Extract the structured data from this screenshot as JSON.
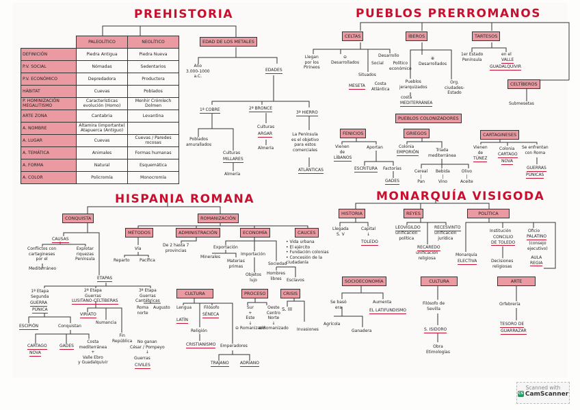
{
  "prehistoria": {
    "title": "PREHISTORIA",
    "table": {
      "headers": [
        "Paleolítico",
        "Neolítico"
      ],
      "rows": [
        {
          "label": "Definición",
          "paleo": "Piedra Antigua",
          "neo": "Piedra Nueva"
        },
        {
          "label": "P.V. Social",
          "paleo": "Nómadas",
          "neo": "Sedentarios"
        },
        {
          "label": "P.V. Económico",
          "paleo": "Depredadora",
          "neo": "Productora"
        },
        {
          "label": "Hábitat",
          "paleo": "Cuevas",
          "neo": "Poblados"
        },
        {
          "label": "P. Hominización Megalitismo",
          "paleo": "Características evolución (Homo)",
          "neo": "Menhir Crómlech Dolmen"
        },
        {
          "label": "Arte Zona",
          "paleo": "Cantabria",
          "neo": "Levantina"
        },
        {
          "label": "A. Nombre",
          "paleo": "Altamira (importante) Atapuerca (Antiguo)",
          "neo": ""
        },
        {
          "label": "A. Lugar",
          "paleo": "Cuevas",
          "neo": "Cuevas / Paredes rocosas"
        },
        {
          "label": "A. Temática",
          "paleo": "Animales",
          "neo": "Formas humanas"
        },
        {
          "label": "A. Forma",
          "paleo": "Natural",
          "neo": "Esquemática"
        },
        {
          "label": "A. Color",
          "paleo": "Policromía",
          "neo": "Monocromía"
        }
      ]
    },
    "metales": {
      "box": "Edad de los metales",
      "ano": "Año\n3.000-1000\na.C.",
      "edades": "Edades",
      "cobre": "1ª Cobre",
      "cobre_a": "Poblados\namurallados",
      "cobre_b": "Culturas",
      "cobre_c": "Millares",
      "cobre_d": "Almería",
      "bronce": "2ª Bronce",
      "bronce_a": "Culturas",
      "bronce_b": "Argar",
      "bronce_c": "Almería",
      "hierro": "3ª Hierro",
      "hierro_a": "La Península\nes el objetivo\npara estos\ncomerciales",
      "hierro_b": "Atlánticas"
    }
  },
  "prerromanos": {
    "title": "PUEBLOS PRERROMANOS",
    "celtas": "Celtas",
    "celtas_a": "Llegan\npor los\nPirineos",
    "celtas_b": "⊖\nDesarrollados",
    "celtas_c": "Desarrollo",
    "celtas_d": "Social",
    "celtas_e": "Político\neconómico",
    "celtas_f": "Situados",
    "celtas_g": "Meseta",
    "celtas_h": "Costa\nAtlántica",
    "iberos": "Íberos",
    "iberos_a": "⊕\nDesarrollados",
    "iberos_b": "Pueblos\njerarquizados",
    "iberos_c": "costa",
    "iberos_d": "Mediterránea",
    "iberos_e": "Org.\nciudades-\nEstado",
    "tartesos": "Tartesos",
    "tartesos_a": "1er Estado\nPenínsula",
    "tartesos_b": "en el",
    "tartesos_c": "Valle",
    "tartesos_d": "Guadalquivir",
    "celtiberos": "Celtíberos",
    "celtiberos_a": "Submesetas",
    "colonizadores": "Pueblos colonizadores",
    "fenicios": "Fenicios",
    "fenicios_a": "Vienen\nde",
    "fenicios_b": "Líbanos",
    "fenicios_c": "Aportan",
    "fenicios_d": "Escritura",
    "fenicios_e": "Factorías",
    "fenicios_f": "Gades",
    "griegos": "Griegos",
    "griegos_a": "Colonia",
    "griegos_b": "Emporión",
    "griegos_c": "Tríada\nmediterránea",
    "griegos_d": "Cereal\n|\nPan",
    "griegos_e": "Bebida\n|\nVino",
    "griegos_f": "Olivo\n|\nAceite",
    "cartagineses": "Cartagineses",
    "cart_a": "Vienen\nde",
    "cart_b": "Túnez",
    "cart_c": "Colonia",
    "cart_d": "Cartago",
    "cart_e": "Nova",
    "cart_f": "Se enfrentan\ncon Roma",
    "cart_g": "Guerras",
    "cart_h": "Púnicas"
  },
  "hispania": {
    "title": "HISPANIA ROMANA",
    "conquista": "Conquista",
    "causas": "Causas",
    "causas_a": "Conflictos con\ncartagineses\npor el",
    "causas_b": "Mediterráneo",
    "causas_c": "Explotar\nriquezas\nPenínsula",
    "etapas": "Etapas",
    "etapa1": "1ª Etapa\nSegunda",
    "etapa1_b": "Guerra",
    "etapa1_c": "Púnica",
    "escipion": "Escipión",
    "conquistan": "Conquistan",
    "cartago": "Cartago",
    "nova": "Nova",
    "gades": "Gades",
    "costa": "Costa\nmediterránea\n+\nValle Ebro\ny Guadalquivir",
    "etapa2": "2ª Etapa\nGuerras",
    "etapa2_b": "Lusitano-Celtíberas",
    "viriato": "Viriato",
    "numancia": "Numancia",
    "fin": "Fin\nRepública",
    "noganan": "No ganan\nCésar / Pompeyo\n↓",
    "guerras": "Guerras",
    "civiles": "Civiles",
    "etapa3": "3ª Etapa\nGuerras\nCantábricas",
    "roma_norte": "Roma\nnorte",
    "augusto": "Augusto",
    "romanizacion": "Romanización",
    "metodos": "Métodos",
    "via": "Vía",
    "reparto": "Reparto",
    "pacifica": "Pacífica",
    "administracion": "Administración",
    "admin_a": "De 2 hasta 7\nprovincias",
    "economia": "Economía",
    "exportacion": "Exportación",
    "minerales": "Minerales",
    "materias": "Materias\nprimas",
    "importacion": "Importación",
    "objetos": "Objetos\nlujo",
    "sociedad": "Sociedad",
    "hombres": "Hombres\nlibres",
    "esclavos": "Esclavos",
    "cauces": "Cauces",
    "cauces_list": "• Vida urbana\n• El ejército\n• Fundación colonias\n• Concesión de la\nciudadanía",
    "cultura": "Cultura",
    "lengua": "Lengua",
    "latin": "Latín",
    "filosofo": "Filósofo",
    "seneca": "Séneca",
    "religion": "Religión",
    "cristianismo": "Cristianismo",
    "emperadores": "Emperadores",
    "trajano": "Trajano",
    "adriano": "Adriano",
    "proceso": "Proceso",
    "proceso_a": "Sur\n+\nEste\n↓\n⊖ Romanizado",
    "proceso_b": "Oeste\nCentro\nNorte\n↓\n⊕ Romanizado",
    "crisis": "Crisis",
    "s3": "S. III",
    "invasiones": "Invasiones"
  },
  "visigoda": {
    "title": "MONARQUÍA VISIGODA",
    "historia": "Historia",
    "llegada": "Llegada\nS. V",
    "capital": "Capital\n↓",
    "toledo": "Toledo",
    "reyes": "Reyes",
    "leovigildo": "Leovigildo",
    "leovigildo_a": "unificación\npolítica",
    "recesvinto": "Recesvinto",
    "recesvinto_a": "unificación\njurídica",
    "recaredo": "Recaredo",
    "recaredo_a": "unificación\nreligiosa",
    "politica": "Política",
    "monarquia": "Monarquía",
    "electiva": "Electiva",
    "institucion": "Institución",
    "concilio": "Concilio\nde Toledo",
    "decisiones": "Decisiones\nreligiosas",
    "oficio": "Oficio",
    "palatino": "Palatino",
    "consejo": "(consejo\nejecutivo)",
    "aula": "Aula\nRegia",
    "socioeconomia": "Socioeconomía",
    "sebaso": "Se basó\nera",
    "agricola": "Agrícola",
    "ganadera": "Ganadera",
    "aumenta": "Aumenta",
    "latifundismo": "el Latifundismo",
    "cultura": "Cultura",
    "filosofo": "Filósofo de\nSevilla",
    "isidoro": "S. Isidoro",
    "obra": "Obra\nEtimologías",
    "arte": "Arte",
    "orfebreria": "Orfebrería",
    "tesoro": "Tesoro de",
    "guarrazar": "Guarrazar"
  },
  "scanner": {
    "line1": "Scanned with",
    "line2": "CamScanner",
    "logo": "CS"
  },
  "colors": {
    "accent_red": "#c8102e",
    "box_fill": "#ec9aa2",
    "line": "#333333"
  }
}
